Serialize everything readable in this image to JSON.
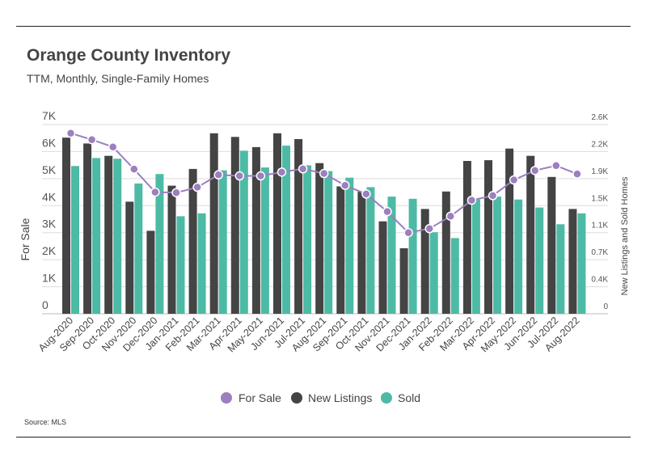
{
  "title": "Orange County Inventory",
  "subtitle": "TTM, Monthly, Single-Family Homes",
  "source": "Source:  MLS",
  "colors": {
    "for_sale": "#9b7fbf",
    "new_listings": "#444444",
    "sold": "#4dbaa5"
  },
  "chart_data": {
    "type": "bar+line",
    "title": "Orange County Inventory",
    "subtitle": "TTM, Monthly, Single-Family Homes",
    "categories": [
      "Aug-2020",
      "Sep-2020",
      "Oct-2020",
      "Nov-2020",
      "Dec-2020",
      "Jan-2021",
      "Feb-2021",
      "Mar-2021",
      "Apr-2021",
      "May-2021",
      "Jun-2021",
      "Jul-2021",
      "Aug-2021",
      "Sep-2021",
      "Oct-2021",
      "Nov-2021",
      "Dec-2021",
      "Jan-2022",
      "Feb-2022",
      "Mar-2022",
      "Apr-2022",
      "May-2022",
      "Jun-2022",
      "Jul-2022",
      "Aug-2022"
    ],
    "ylabel": "For Sale",
    "y2label": "New Listings and Sold Homes",
    "ylim": [
      0,
      7000
    ],
    "y2lim": [
      0,
      2600
    ],
    "yticks": [
      "0",
      "1K",
      "2K",
      "3K",
      "4K",
      "5K",
      "6K",
      "7K"
    ],
    "y2ticks": [
      "0",
      "0.4K",
      "0.7K",
      "1.1K",
      "1.5K",
      "1.9K",
      "2.2K",
      "2.6K"
    ],
    "grid": true,
    "legend_position": "bottom",
    "series": [
      {
        "name": "For Sale",
        "type": "line",
        "axis": "left",
        "values": [
          6680,
          6440,
          6170,
          5350,
          4500,
          4480,
          4680,
          5140,
          5100,
          5100,
          5240,
          5360,
          5190,
          4750,
          4430,
          3780,
          3000,
          3150,
          3610,
          4200,
          4370,
          4950,
          5300,
          5480,
          5170
        ]
      },
      {
        "name": "New Listings",
        "type": "bar",
        "axis": "right",
        "values": [
          2420,
          2340,
          2170,
          1540,
          1140,
          1760,
          1990,
          2480,
          2430,
          2290,
          2480,
          2400,
          2070,
          1750,
          1680,
          1270,
          900,
          1440,
          1680,
          2100,
          2110,
          2270,
          2170,
          1880,
          1440
        ]
      },
      {
        "name": "Sold",
        "type": "bar",
        "axis": "right",
        "values": [
          2030,
          2140,
          2130,
          1790,
          1920,
          1340,
          1380,
          1970,
          2240,
          2010,
          2310,
          2040,
          1960,
          1870,
          1740,
          1610,
          1580,
          1120,
          1040,
          1570,
          1610,
          1570,
          1460,
          1230,
          1380
        ]
      }
    ]
  }
}
